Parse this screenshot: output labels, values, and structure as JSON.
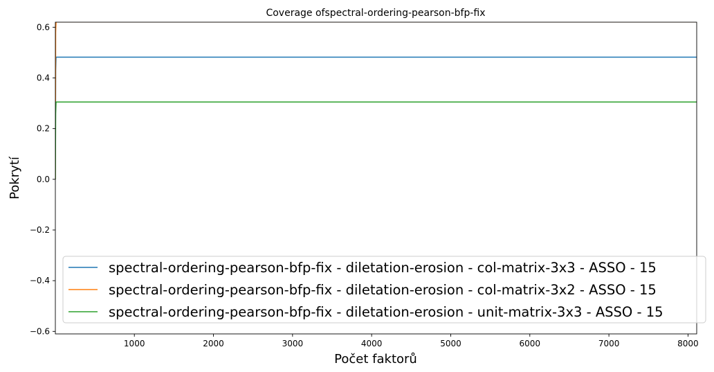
{
  "chart_data": {
    "type": "line",
    "title": "Coverage ofspectral-ordering-pearson-bfp-fix",
    "xlabel": "Počet faktorů",
    "ylabel": "Pokrytí",
    "xlim": [
      1,
      8110
    ],
    "ylim": [
      -0.61,
      0.62
    ],
    "xticks": [
      1000,
      2000,
      3000,
      4000,
      5000,
      6000,
      7000,
      8000
    ],
    "yticks": [
      -0.6,
      -0.4,
      -0.2,
      0.0,
      0.2,
      0.4,
      0.6
    ],
    "ytick_labels": [
      "−0.6",
      "−0.4",
      "−0.2",
      "0.0",
      "0.2",
      "0.4",
      "0.6"
    ],
    "grid": false,
    "legend_position": "lower-right",
    "series": [
      {
        "name": "spectral-ordering-pearson-bfp-fix - diletation-erosion - col-matrix-3x3 - ASSO - 15",
        "color": "#1f77b4",
        "x": [
          1,
          5,
          10,
          8110
        ],
        "y": [
          0.0,
          0.43,
          0.482,
          0.482
        ]
      },
      {
        "name": "spectral-ordering-pearson-bfp-fix - diletation-erosion - col-matrix-3x2 - ASSO - 15",
        "color": "#ff7f0e",
        "x": [
          1,
          5,
          10,
          8110
        ],
        "y": [
          0.0,
          0.58,
          0.621,
          0.621
        ]
      },
      {
        "name": "spectral-ordering-pearson-bfp-fix - diletation-erosion - unit-matrix-3x3 - ASSO - 15",
        "color": "#2ca02c",
        "x": [
          1,
          5,
          10,
          8110
        ],
        "y": [
          0.0,
          0.26,
          0.305,
          0.305
        ]
      }
    ]
  }
}
